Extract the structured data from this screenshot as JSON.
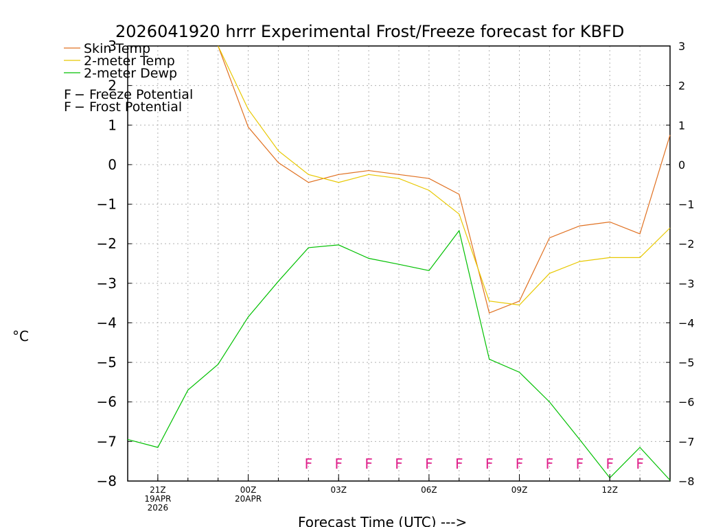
{
  "chart_data": {
    "type": "line",
    "title": "2026041920 hrrr Experimental Frost/Freeze forecast for KBFD",
    "xlabel": "Forecast Time (UTC) --->",
    "ylabel": "°C",
    "ylim": [
      -8,
      3
    ],
    "yticks": [
      3,
      2,
      1,
      0,
      -1,
      -2,
      -3,
      -4,
      -5,
      -6,
      -7,
      -8
    ],
    "ytick_labels": [
      "3",
      "2",
      "1",
      "0",
      "−1",
      "−2",
      "−3",
      "−4",
      "−5",
      "−6",
      "−7",
      "−8"
    ],
    "right_ytick_labels": [
      "3",
      "2",
      "1",
      "0",
      "−1",
      "−2",
      "−3",
      "−4",
      "−5",
      "−6",
      "−7",
      "−8"
    ],
    "xlim": [
      20,
      38
    ],
    "xticks": [
      {
        "x": 21,
        "lines": [
          "21Z",
          "19APR",
          "2026"
        ]
      },
      {
        "x": 24,
        "lines": [
          "00Z",
          "20APR"
        ]
      },
      {
        "x": 27,
        "lines": [
          "03Z"
        ]
      },
      {
        "x": 30,
        "lines": [
          "06Z"
        ]
      },
      {
        "x": 33,
        "lines": [
          "09Z"
        ]
      },
      {
        "x": 36,
        "lines": [
          "12Z"
        ]
      }
    ],
    "grid": true,
    "series": [
      {
        "name": "Skin Temp",
        "color": "#e07020",
        "x": [
          23,
          24,
          25,
          26,
          27,
          28,
          29,
          30,
          31,
          32,
          33,
          34,
          35,
          36,
          37,
          38
        ],
        "values": [
          3.0,
          0.95,
          0.05,
          -0.45,
          -0.25,
          -0.15,
          -0.25,
          -0.35,
          -0.75,
          -3.75,
          -3.45,
          -1.85,
          -1.55,
          -1.45,
          -1.75,
          0.75
        ]
      },
      {
        "name": "2-meter Temp",
        "color": "#e8c800",
        "x": [
          23,
          24,
          25,
          26,
          27,
          28,
          29,
          30,
          31,
          32,
          33,
          34,
          35,
          36,
          37,
          38
        ],
        "values": [
          3.0,
          1.4,
          0.35,
          -0.25,
          -0.45,
          -0.25,
          -0.35,
          -0.65,
          -1.25,
          -3.45,
          -3.55,
          -2.75,
          -2.45,
          -2.35,
          -2.35,
          -1.6
        ]
      },
      {
        "name": "2-meter Dewp",
        "color": "#00c000",
        "x": [
          20,
          21,
          22,
          23,
          24,
          25,
          26,
          27,
          28,
          29,
          30,
          31,
          32,
          33,
          34,
          35,
          36,
          37,
          38
        ],
        "values": [
          -6.95,
          -7.15,
          -5.7,
          -5.05,
          -3.85,
          -2.95,
          -2.1,
          -2.03,
          -2.37,
          -2.52,
          -2.68,
          -1.67,
          -4.92,
          -5.25,
          -6.0,
          -6.95,
          -7.92,
          -7.15,
          -7.98
        ]
      }
    ],
    "legend": {
      "position": "top-left",
      "entries": [
        "Skin Temp",
        "2-meter Temp",
        "2-meter Dewp"
      ],
      "flags": [
        {
          "symbol": "F",
          "text": " − Freeze Potential",
          "color": "#e0208a"
        },
        {
          "symbol": "F",
          "text": " − Frost Potential",
          "color": "#3050e0"
        }
      ]
    },
    "flags": {
      "symbol": "F",
      "color": "#e0208a",
      "type": "Freeze Potential",
      "value": -7.55,
      "x": [
        26,
        27,
        28,
        29,
        30,
        31,
        32,
        33,
        34,
        35,
        36,
        37
      ]
    }
  }
}
